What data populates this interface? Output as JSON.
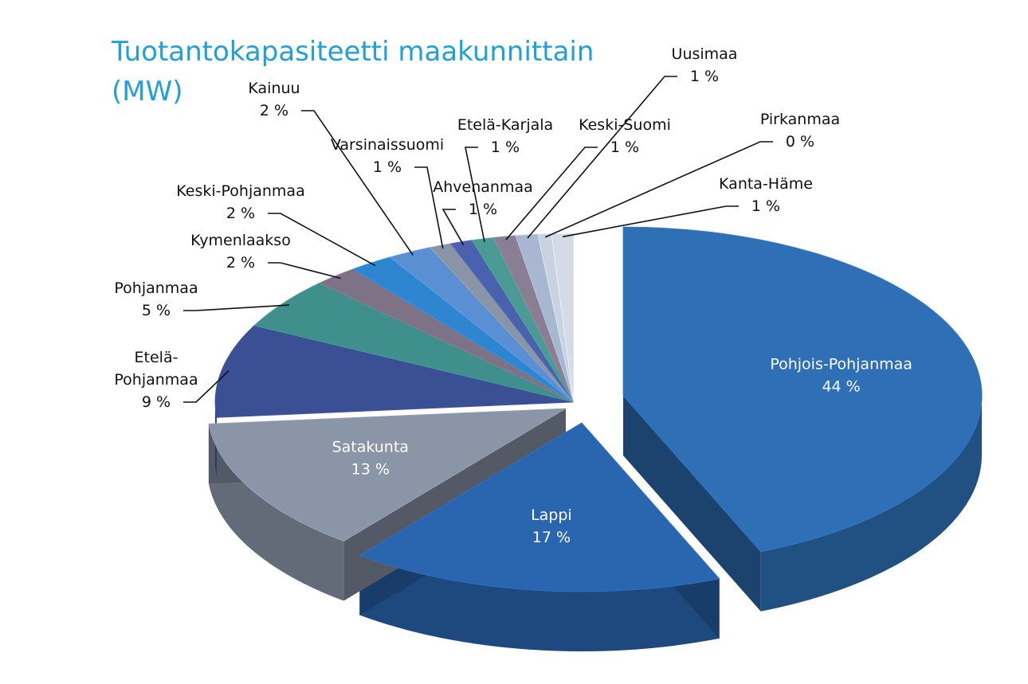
{
  "title_lines": [
    "Tuotantokapasiteetti maakunnittain",
    "(MW)"
  ],
  "chart_data": {
    "type": "pie",
    "style": "3d-exploded",
    "title": "Tuotantokapasiteetti maakunnittain (MW)",
    "unit": "%",
    "slices": [
      {
        "name": "Pohjois-Pohjanmaa",
        "value": 44,
        "label": "44 %",
        "color": "#2e6fb6",
        "label_placement": "inside"
      },
      {
        "name": "Lappi",
        "value": 17,
        "label": "17 %",
        "color": "#2a66b0",
        "label_placement": "inside"
      },
      {
        "name": "Satakunta",
        "value": 13,
        "label": "13 %",
        "color": "#8a95a8",
        "label_placement": "inside"
      },
      {
        "name": "Etelä-Pohjanmaa",
        "value": 9,
        "label": "9 %",
        "color": "#3a4f94",
        "label_placement": "outside",
        "name_lines": [
          "Etelä-",
          "Pohjanmaa"
        ]
      },
      {
        "name": "Pohjanmaa",
        "value": 5,
        "label": "5 %",
        "color": "#3f8f8c",
        "label_placement": "outside"
      },
      {
        "name": "Kymenlaakso",
        "value": 2,
        "label": "2 %",
        "color": "#7e7287",
        "label_placement": "outside"
      },
      {
        "name": "Keski-Pohjanmaa",
        "value": 2,
        "label": "2 %",
        "color": "#2d86cf",
        "label_placement": "outside"
      },
      {
        "name": "Kainuu",
        "value": 2,
        "label": "2 %",
        "color": "#5b8fd3",
        "label_placement": "outside"
      },
      {
        "name": "Varsinaissuomi",
        "value": 1,
        "label": "1 %",
        "color": "#8995a6",
        "label_placement": "outside"
      },
      {
        "name": "Ahvenanmaa",
        "value": 1,
        "label": "1 %",
        "color": "#4a62ad",
        "label_placement": "outside"
      },
      {
        "name": "Etelä-Karjala",
        "value": 1,
        "label": "1 %",
        "color": "#4a9a96",
        "label_placement": "outside"
      },
      {
        "name": "Keski-Suomi",
        "value": 1,
        "label": "1 %",
        "color": "#8a7e94",
        "label_placement": "outside"
      },
      {
        "name": "Uusimaa",
        "value": 1,
        "label": "1 %",
        "color": "#a8b7cf",
        "label_placement": "outside"
      },
      {
        "name": "Pirkanmaa",
        "value": 0,
        "label": "0 %",
        "color": "#c9d2e0",
        "label_placement": "outside"
      },
      {
        "name": "Kanta-Häme",
        "value": 1,
        "label": "1 %",
        "color": "#d4dbe6",
        "label_placement": "outside"
      }
    ],
    "legend": "none"
  }
}
